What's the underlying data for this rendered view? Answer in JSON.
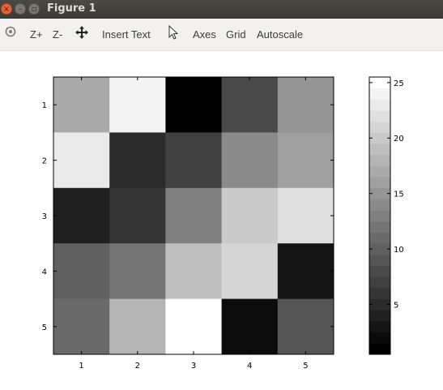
{
  "window": {
    "title": "Figure 1"
  },
  "toolbar": {
    "zoom_in": "Z+",
    "zoom_out": "Z-",
    "insert_text": "Insert Text",
    "axes": "Axes",
    "grid": "Grid",
    "autoscale": "Autoscale",
    "icons": [
      "rotate-icon",
      "pan-icon",
      "select-pointer-icon"
    ]
  },
  "chart_data": {
    "type": "heatmap",
    "colormap": "gray",
    "x_ticks": [
      "1",
      "2",
      "3",
      "4",
      "5"
    ],
    "y_ticks": [
      "1",
      "2",
      "3",
      "4",
      "5"
    ],
    "values": [
      [
        17,
        24,
        1,
        8,
        15
      ],
      [
        23,
        5,
        7,
        14,
        16
      ],
      [
        4,
        6,
        13,
        20,
        22
      ],
      [
        10,
        12,
        19,
        21,
        3
      ],
      [
        11,
        18,
        25,
        2,
        9
      ]
    ],
    "clim": [
      1,
      25
    ],
    "colorbar": {
      "ticks": [
        5,
        10,
        15,
        20,
        25
      ],
      "tick_labels": [
        "5",
        "10",
        "15",
        "20",
        "25"
      ],
      "levels": 25
    }
  }
}
